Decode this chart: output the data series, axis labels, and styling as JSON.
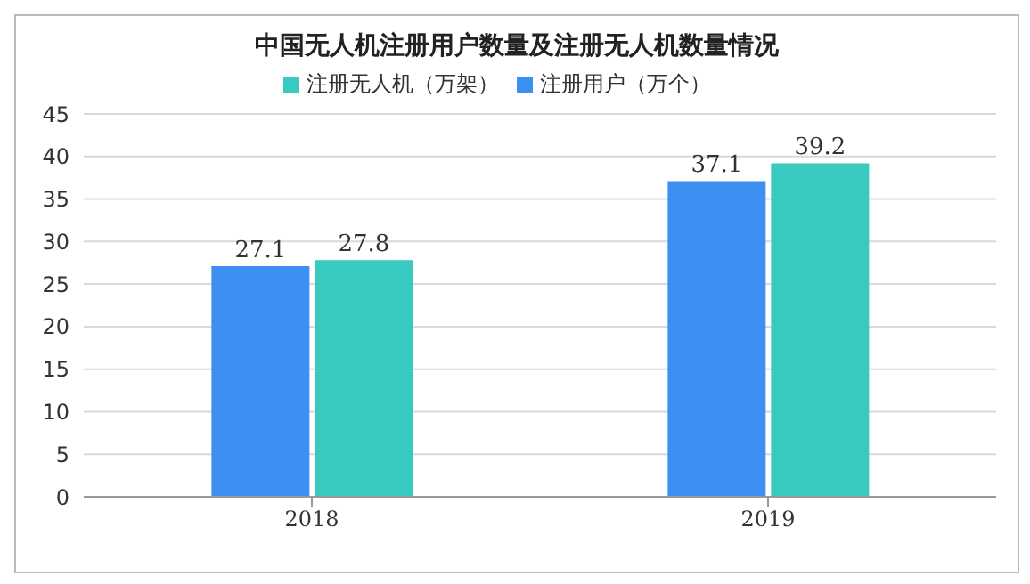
{
  "chart_data": {
    "type": "bar",
    "title": "中国无人机注册用户数量及注册无人机数量情况",
    "categories": [
      "2018",
      "2019"
    ],
    "series": [
      {
        "name": "注册用户（万个）",
        "color": "#3d8ff2",
        "values": [
          27.1,
          37.1
        ]
      },
      {
        "name": "注册无人机（万架）",
        "color": "#38c9c1",
        "values": [
          27.8,
          39.2
        ]
      }
    ],
    "ylim": [
      0,
      45
    ],
    "yticks": [
      0,
      5,
      10,
      15,
      20,
      25,
      30,
      35,
      40,
      45
    ],
    "grid": "y",
    "legend": "top",
    "data_labels": true
  }
}
